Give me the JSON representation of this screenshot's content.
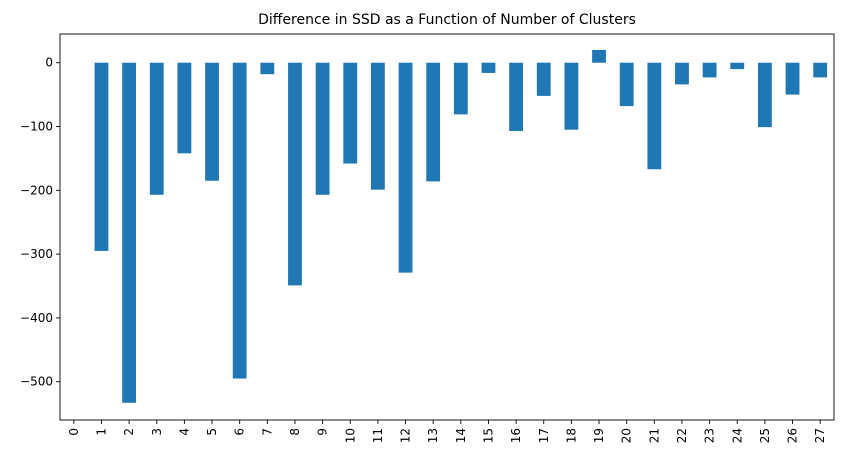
{
  "chart_data": {
    "type": "bar",
    "title": "Difference in SSD as a Function of Number of Clusters",
    "xlabel": "",
    "ylabel": "",
    "categories": [
      "0",
      "1",
      "2",
      "3",
      "4",
      "5",
      "6",
      "7",
      "8",
      "9",
      "10",
      "11",
      "12",
      "13",
      "14",
      "15",
      "16",
      "17",
      "18",
      "19",
      "20",
      "21",
      "22",
      "23",
      "24",
      "25",
      "26",
      "27"
    ],
    "values": [
      0,
      -295,
      -533,
      -207,
      -142,
      -185,
      -495,
      -18,
      -349,
      -207,
      -158,
      -199,
      -329,
      -186,
      -81,
      -16,
      -107,
      -52,
      -105,
      20,
      -68,
      -167,
      -34,
      -23,
      -10,
      -101,
      -50,
      -23
    ],
    "yticks": [
      0,
      -100,
      -200,
      -300,
      -400,
      -500
    ],
    "ylim": [
      -560,
      45
    ],
    "bar_color": "#1f77b4",
    "grid": false,
    "legend": false
  }
}
